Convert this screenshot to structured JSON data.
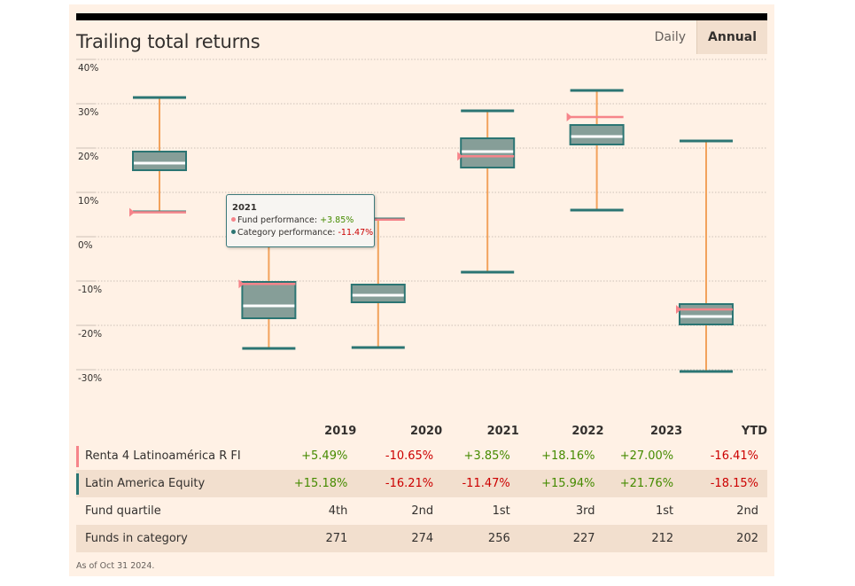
{
  "header": {
    "title": "Trailing total returns",
    "tabs": [
      {
        "label": "Daily",
        "active": false
      },
      {
        "label": "Annual",
        "active": true
      }
    ]
  },
  "colors": {
    "whisker": "#f2a25c",
    "box_fill": "#869e98",
    "box_stroke": "#2b7573",
    "median": "#ffffff",
    "fund_marker": "#f6848a",
    "positive": "#458b00",
    "negative": "#cc0000",
    "grid": "#ccc1b7"
  },
  "chart_data": {
    "type": "boxplot",
    "title": "Trailing total returns",
    "xlabel": "",
    "ylabel": "",
    "ylim": [
      -30,
      40
    ],
    "yticks": [
      40,
      30,
      20,
      10,
      0,
      -10,
      -20,
      -30
    ],
    "ytick_labels": [
      "40%",
      "30%",
      "20%",
      "10%",
      "0%",
      "-10%",
      "-20%",
      "-30%"
    ],
    "grid": true,
    "categories": [
      "2019",
      "2020",
      "2021",
      "2022",
      "2023",
      "YTD"
    ],
    "series": [
      {
        "name": "Latin America Equity (category distribution)",
        "boxes": [
          {
            "max": 31.4,
            "q3": 19.2,
            "median": 16.6,
            "q1": 15.0,
            "min": 5.6
          },
          {
            "max": -0.4,
            "q3": -10.2,
            "median": -15.6,
            "q1": -18.4,
            "min": -25.2
          },
          {
            "max": 4.0,
            "q3": -10.8,
            "median": -13.2,
            "q1": -14.8,
            "min": -25.0
          },
          {
            "max": 28.4,
            "q3": 22.2,
            "median": 19.2,
            "q1": 15.6,
            "min": -8.0
          },
          {
            "max": 33.0,
            "q3": 25.2,
            "median": 22.6,
            "q1": 20.8,
            "min": 6.0
          },
          {
            "max": 21.6,
            "q3": -15.2,
            "median": -18.0,
            "q1": -19.8,
            "min": -30.4
          }
        ]
      },
      {
        "name": "Renta 4 Latinoamérica R FI (fund marker)",
        "values": [
          5.49,
          -10.65,
          3.85,
          18.16,
          27.0,
          -16.41
        ]
      }
    ],
    "tooltip": {
      "title": "2021",
      "fund_label": "Fund performance:",
      "fund_value": "+3.85%",
      "category_label": "Category performance:",
      "category_value": "-11.47%"
    }
  },
  "table": {
    "columns": [
      "2019",
      "2020",
      "2021",
      "2022",
      "2023",
      "YTD"
    ],
    "rows": [
      {
        "label": "Renta 4 Latinoamérica R FI",
        "swatch": "#f6848a",
        "values": [
          "+5.49%",
          "-10.65%",
          "+3.85%",
          "+18.16%",
          "+27.00%",
          "-16.41%"
        ],
        "colored": true
      },
      {
        "label": "Latin America Equity",
        "swatch": "#2b7573",
        "values": [
          "+15.18%",
          "-16.21%",
          "-11.47%",
          "+15.94%",
          "+21.76%",
          "-18.15%"
        ],
        "colored": true
      },
      {
        "label": "Fund quartile",
        "swatch": null,
        "values": [
          "4th",
          "2nd",
          "1st",
          "3rd",
          "1st",
          "2nd"
        ],
        "colored": false
      },
      {
        "label": "Funds in category",
        "swatch": null,
        "values": [
          "271",
          "274",
          "256",
          "227",
          "212",
          "202"
        ],
        "colored": false
      }
    ]
  },
  "footnote": "As of Oct 31 2024."
}
